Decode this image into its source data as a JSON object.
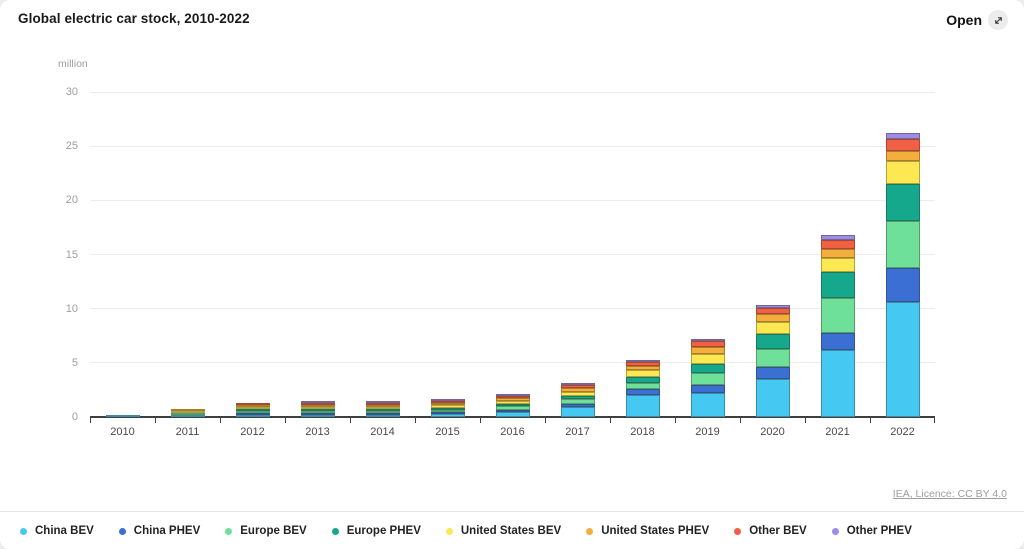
{
  "header": {
    "title": "Global electric car stock, 2010-2022",
    "open_label": "Open",
    "open_icon": "expand-arrow-icon"
  },
  "attribution": {
    "text": "IEA, Licence: CC BY 4.0"
  },
  "colors": {
    "axis": "#3f3f3f",
    "gridline": "#ececec",
    "tick_text": "#9e9e9e",
    "year_text": "#4a4a4a"
  },
  "chart_data": {
    "type": "bar",
    "stacked": true,
    "title": "Global electric car stock, 2010-2022",
    "xlabel": "",
    "ylabel": "million",
    "ylim": [
      0,
      30
    ],
    "yticks": [
      0,
      5,
      10,
      15,
      20,
      25,
      30
    ],
    "grid": true,
    "legend_position": "bottom",
    "categories": [
      "2010",
      "2011",
      "2012",
      "2013",
      "2014",
      "2015",
      "2016",
      "2017",
      "2018",
      "2019",
      "2020",
      "2021",
      "2022"
    ],
    "series": [
      {
        "name": "China BEV",
        "color": "#45c8f1",
        "values": [
          0.01,
          0.04,
          0.06,
          0.08,
          0.12,
          0.3,
          0.5,
          0.95,
          2.0,
          2.2,
          3.5,
          6.2,
          10.6
        ]
      },
      {
        "name": "China PHEV",
        "color": "#3b6fd4",
        "values": [
          0.0,
          0.0,
          0.01,
          0.02,
          0.03,
          0.08,
          0.15,
          0.25,
          0.55,
          0.8,
          1.1,
          1.55,
          3.2
        ]
      },
      {
        "name": "Europe BEV",
        "color": "#6fe09a",
        "values": [
          0.0,
          0.01,
          0.03,
          0.06,
          0.13,
          0.2,
          0.3,
          0.45,
          0.6,
          1.1,
          1.7,
          3.2,
          4.3
        ]
      },
      {
        "name": "Europe PHEV",
        "color": "#15a88c",
        "values": [
          0.0,
          0.0,
          0.01,
          0.02,
          0.06,
          0.12,
          0.2,
          0.3,
          0.5,
          0.8,
          1.4,
          2.4,
          3.4
        ]
      },
      {
        "name": "United States BEV",
        "color": "#fbe853",
        "values": [
          0.0,
          0.01,
          0.03,
          0.08,
          0.14,
          0.2,
          0.3,
          0.4,
          0.65,
          0.95,
          1.1,
          1.3,
          2.1
        ]
      },
      {
        "name": "United States PHEV",
        "color": "#f3ae3d",
        "values": [
          0.0,
          0.01,
          0.04,
          0.09,
          0.14,
          0.19,
          0.25,
          0.35,
          0.45,
          0.65,
          0.7,
          0.85,
          0.95
        ]
      },
      {
        "name": "Other BEV",
        "color": "#ef6045",
        "values": [
          0.0,
          0.0,
          0.01,
          0.03,
          0.05,
          0.1,
          0.18,
          0.28,
          0.35,
          0.55,
          0.55,
          0.85,
          1.15
        ]
      },
      {
        "name": "Other PHEV",
        "color": "#9c8ce4",
        "values": [
          0.0,
          0.0,
          0.0,
          0.01,
          0.02,
          0.05,
          0.08,
          0.12,
          0.15,
          0.2,
          0.3,
          0.45,
          0.55
        ]
      }
    ]
  }
}
